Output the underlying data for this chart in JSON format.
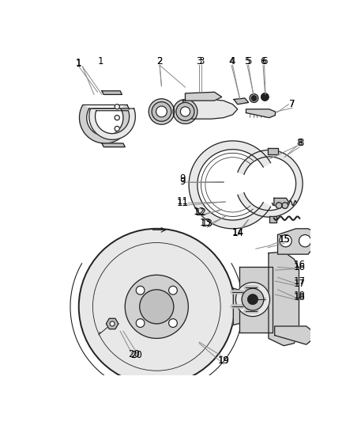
{
  "background_color": "#ffffff",
  "label_color": "#000000",
  "line_color": "#222222",
  "figsize": [
    4.38,
    5.33
  ],
  "dpi": 100,
  "lw": 0.9,
  "lw_thick": 1.4,
  "part_fill": "#e8e8e8",
  "part_fill2": "#d0d0d0",
  "part_fill3": "#c0c0c0",
  "white": "#ffffff"
}
